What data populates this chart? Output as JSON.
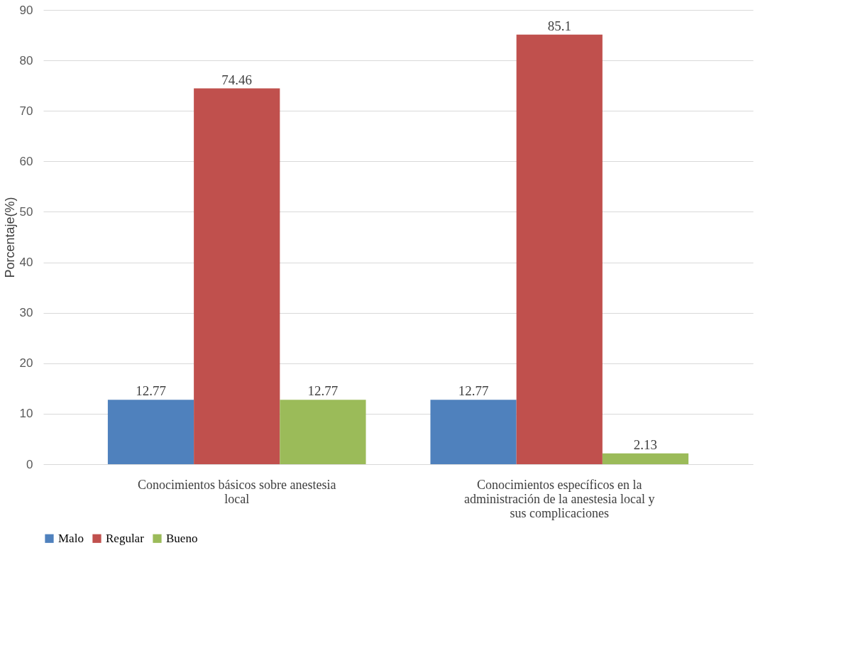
{
  "chart_data": {
    "type": "bar",
    "ylabel": "Porcentaje(%)",
    "categories": [
      "Conocimientos básicos sobre anestesia local",
      "Conocimientos específicos en la administración de la anestesia local y sus complicaciones"
    ],
    "series": [
      {
        "name": "Malo",
        "color": "#4f81bd",
        "values": [
          12.77,
          12.77
        ]
      },
      {
        "name": "Regular",
        "color": "#c0504d",
        "values": [
          74.46,
          85.1
        ]
      },
      {
        "name": "Bueno",
        "color": "#9bbb59",
        "values": [
          12.77,
          2.13
        ]
      }
    ],
    "ylim": [
      0,
      90
    ],
    "yticks": [
      0,
      10,
      20,
      30,
      40,
      50,
      60,
      70,
      80,
      90
    ],
    "grid": "y",
    "legend": "bottom",
    "data_labels": true
  }
}
